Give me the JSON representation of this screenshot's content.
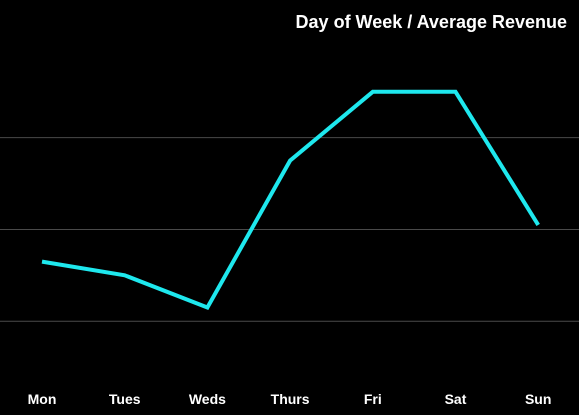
{
  "chart_data": {
    "type": "line",
    "title": "Day of Week / Average Revenue",
    "xlabel": "",
    "ylabel": "",
    "categories": [
      "Mon",
      "Tues",
      "Weds",
      "Thurs",
      "Fri",
      "Sat",
      "Sun"
    ],
    "series": [
      {
        "values": [
          3.3,
          3.0,
          2.3,
          5.5,
          7.0,
          7.0,
          4.1
        ]
      }
    ],
    "ylim": [
      0,
      9
    ],
    "gridlines": [
      2,
      4,
      6
    ],
    "grid": true,
    "legend": "none",
    "colors": {
      "background": "#000000",
      "line": "#1ee8ee",
      "grid": "#4a4a4a",
      "text": "#ffffff"
    }
  }
}
